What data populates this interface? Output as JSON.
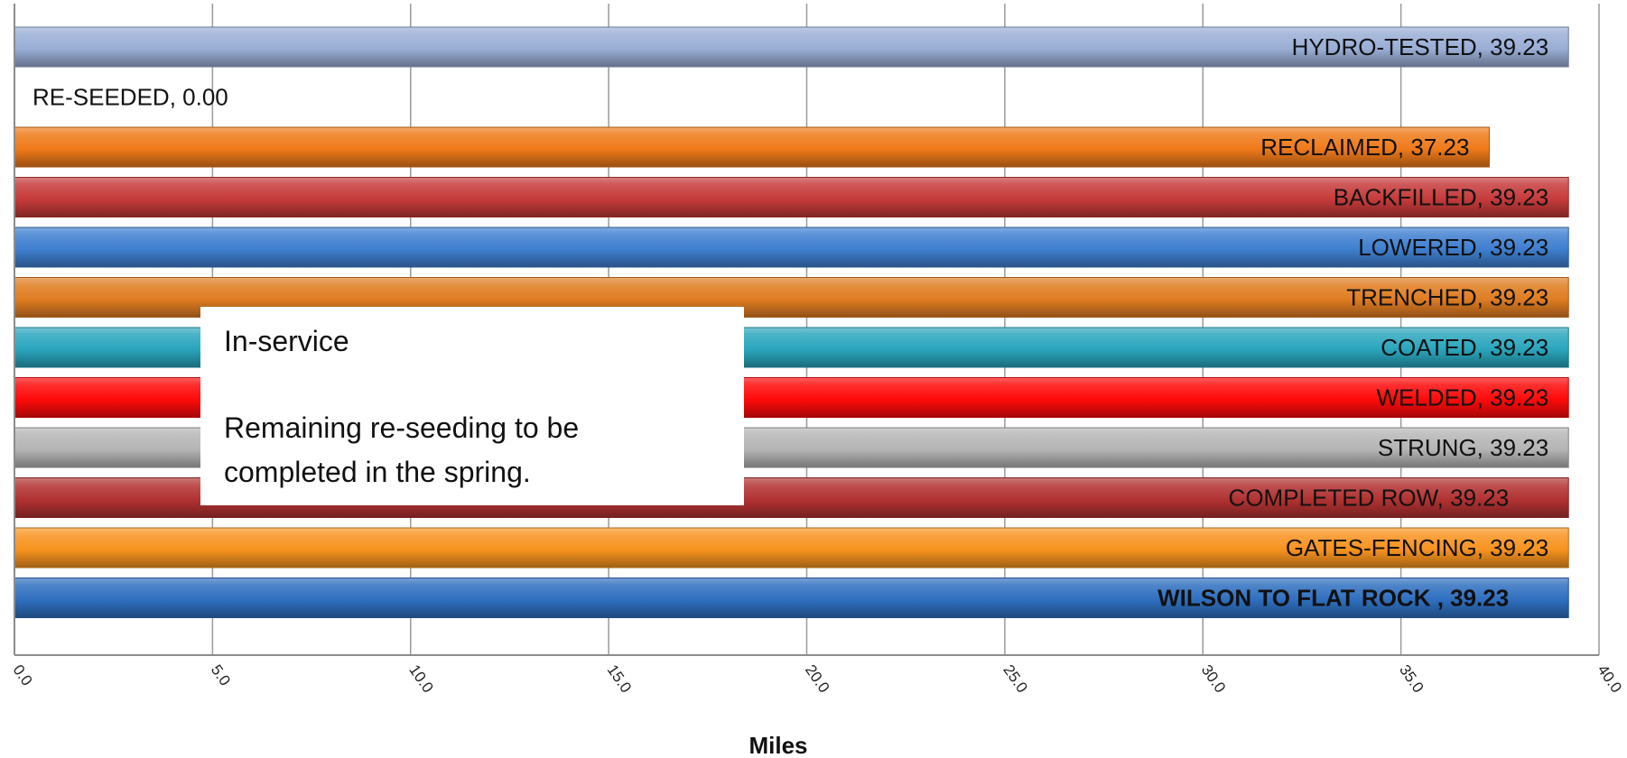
{
  "chart_data": {
    "type": "bar",
    "orientation": "horizontal",
    "categories": [
      "HYDRO-TESTED",
      "RE-SEEDED",
      "RECLAIMED",
      "BACKFILLED",
      "LOWERED",
      "TRENCHED",
      "COATED",
      "WELDED",
      "STRUNG",
      "COMPLETED ROW",
      "GATES-FENCING",
      "WILSON TO FLAT ROCK "
    ],
    "values": [
      39.23,
      0.0,
      37.23,
      39.23,
      39.23,
      39.23,
      39.23,
      39.23,
      39.23,
      39.23,
      39.23,
      39.23
    ],
    "value_labels": [
      "39.23",
      "0.00",
      "37.23",
      "39.23",
      "39.23",
      "39.23",
      "39.23",
      "39.23",
      "39.23",
      "39.23",
      "39.23",
      "39.23"
    ],
    "bar_colors": [
      "#9aaed6",
      "#9aaed6",
      "#ef7a1a",
      "#c73b3b",
      "#3f7fd0",
      "#e07d22",
      "#2aa6bd",
      "#ff0a0a",
      "#b5b5b5",
      "#b23232",
      "#f8931f",
      "#2f6fc0"
    ],
    "bold_categories": [
      "WILSON TO FLAT ROCK "
    ],
    "xlabel": "Miles",
    "ylabel": "",
    "xlim": [
      0,
      40
    ],
    "x_ticks": [
      "0.0",
      "5.0",
      "10.0",
      "15.0",
      "20.0",
      "25.0",
      "30.0",
      "35.0",
      "40.0"
    ],
    "grid": "vertical",
    "legend": "none",
    "annotation": {
      "lines": [
        "In-service",
        "",
        "Remaining re-seeding to be",
        "completed in the spring."
      ]
    }
  }
}
